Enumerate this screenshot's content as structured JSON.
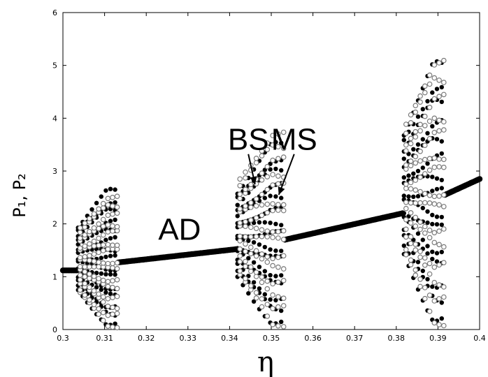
{
  "chart_data": {
    "type": "scatter",
    "title": "",
    "xlabel": "η",
    "ylabel": "P₁, P₂",
    "xlim": [
      0.3,
      0.4
    ],
    "ylim": [
      0,
      6
    ],
    "xticks": [
      "0.3",
      "0.31",
      "0.32",
      "0.33",
      "0.34",
      "0.35",
      "0.36",
      "0.37",
      "0.38",
      "0.39",
      "0.4"
    ],
    "yticks": [
      "0",
      "1",
      "2",
      "3",
      "4",
      "5",
      "6"
    ],
    "grid": false,
    "legend": "none",
    "annotations": [
      {
        "text": "AD",
        "x": 0.328,
        "y": 1.7
      },
      {
        "text": "BS",
        "x": 0.3445,
        "y": 3.4,
        "arrow_to": [
          0.3461,
          2.75
        ]
      },
      {
        "text": "MS",
        "x": 0.3555,
        "y": 3.4,
        "arrow_to": [
          0.3518,
          2.55
        ]
      }
    ],
    "series": [
      {
        "marker": "filled",
        "color": "#000000",
        "steady_segments": [
          {
            "x": [
              0.3,
              0.3033
            ],
            "y": [
              1.12,
              1.12
            ]
          },
          {
            "x": [
              0.3133,
              0.3415
            ],
            "y": [
              1.27,
              1.52
            ]
          },
          {
            "x": [
              0.3533,
              0.3815
            ],
            "y": [
              1.7,
              2.2
            ]
          },
          {
            "x": [
              0.3917,
              0.4
            ],
            "y": [
              2.55,
              2.85
            ]
          }
        ],
        "oscillation_bands": [
          {
            "x_range": [
              0.3033,
              0.3133
            ],
            "y_range": [
              0.0,
              2.7
            ]
          },
          {
            "x_range": [
              0.3415,
              0.3533
            ],
            "y_range": [
              0.0,
              3.6
            ]
          },
          {
            "x_range": [
              0.3815,
              0.3917
            ],
            "y_range": [
              0.0,
              5.15
            ]
          }
        ]
      },
      {
        "marker": "open",
        "color": "#7a7a7a",
        "oscillation_bands": [
          {
            "x_range": [
              0.3033,
              0.3133
            ],
            "y_range": [
              0.0,
              2.6
            ]
          },
          {
            "x_range": [
              0.3415,
              0.3533
            ],
            "y_range": [
              0.0,
              3.85
            ]
          },
          {
            "x_range": [
              0.3815,
              0.3917
            ],
            "y_range": [
              0.0,
              5.25
            ]
          }
        ]
      }
    ]
  }
}
